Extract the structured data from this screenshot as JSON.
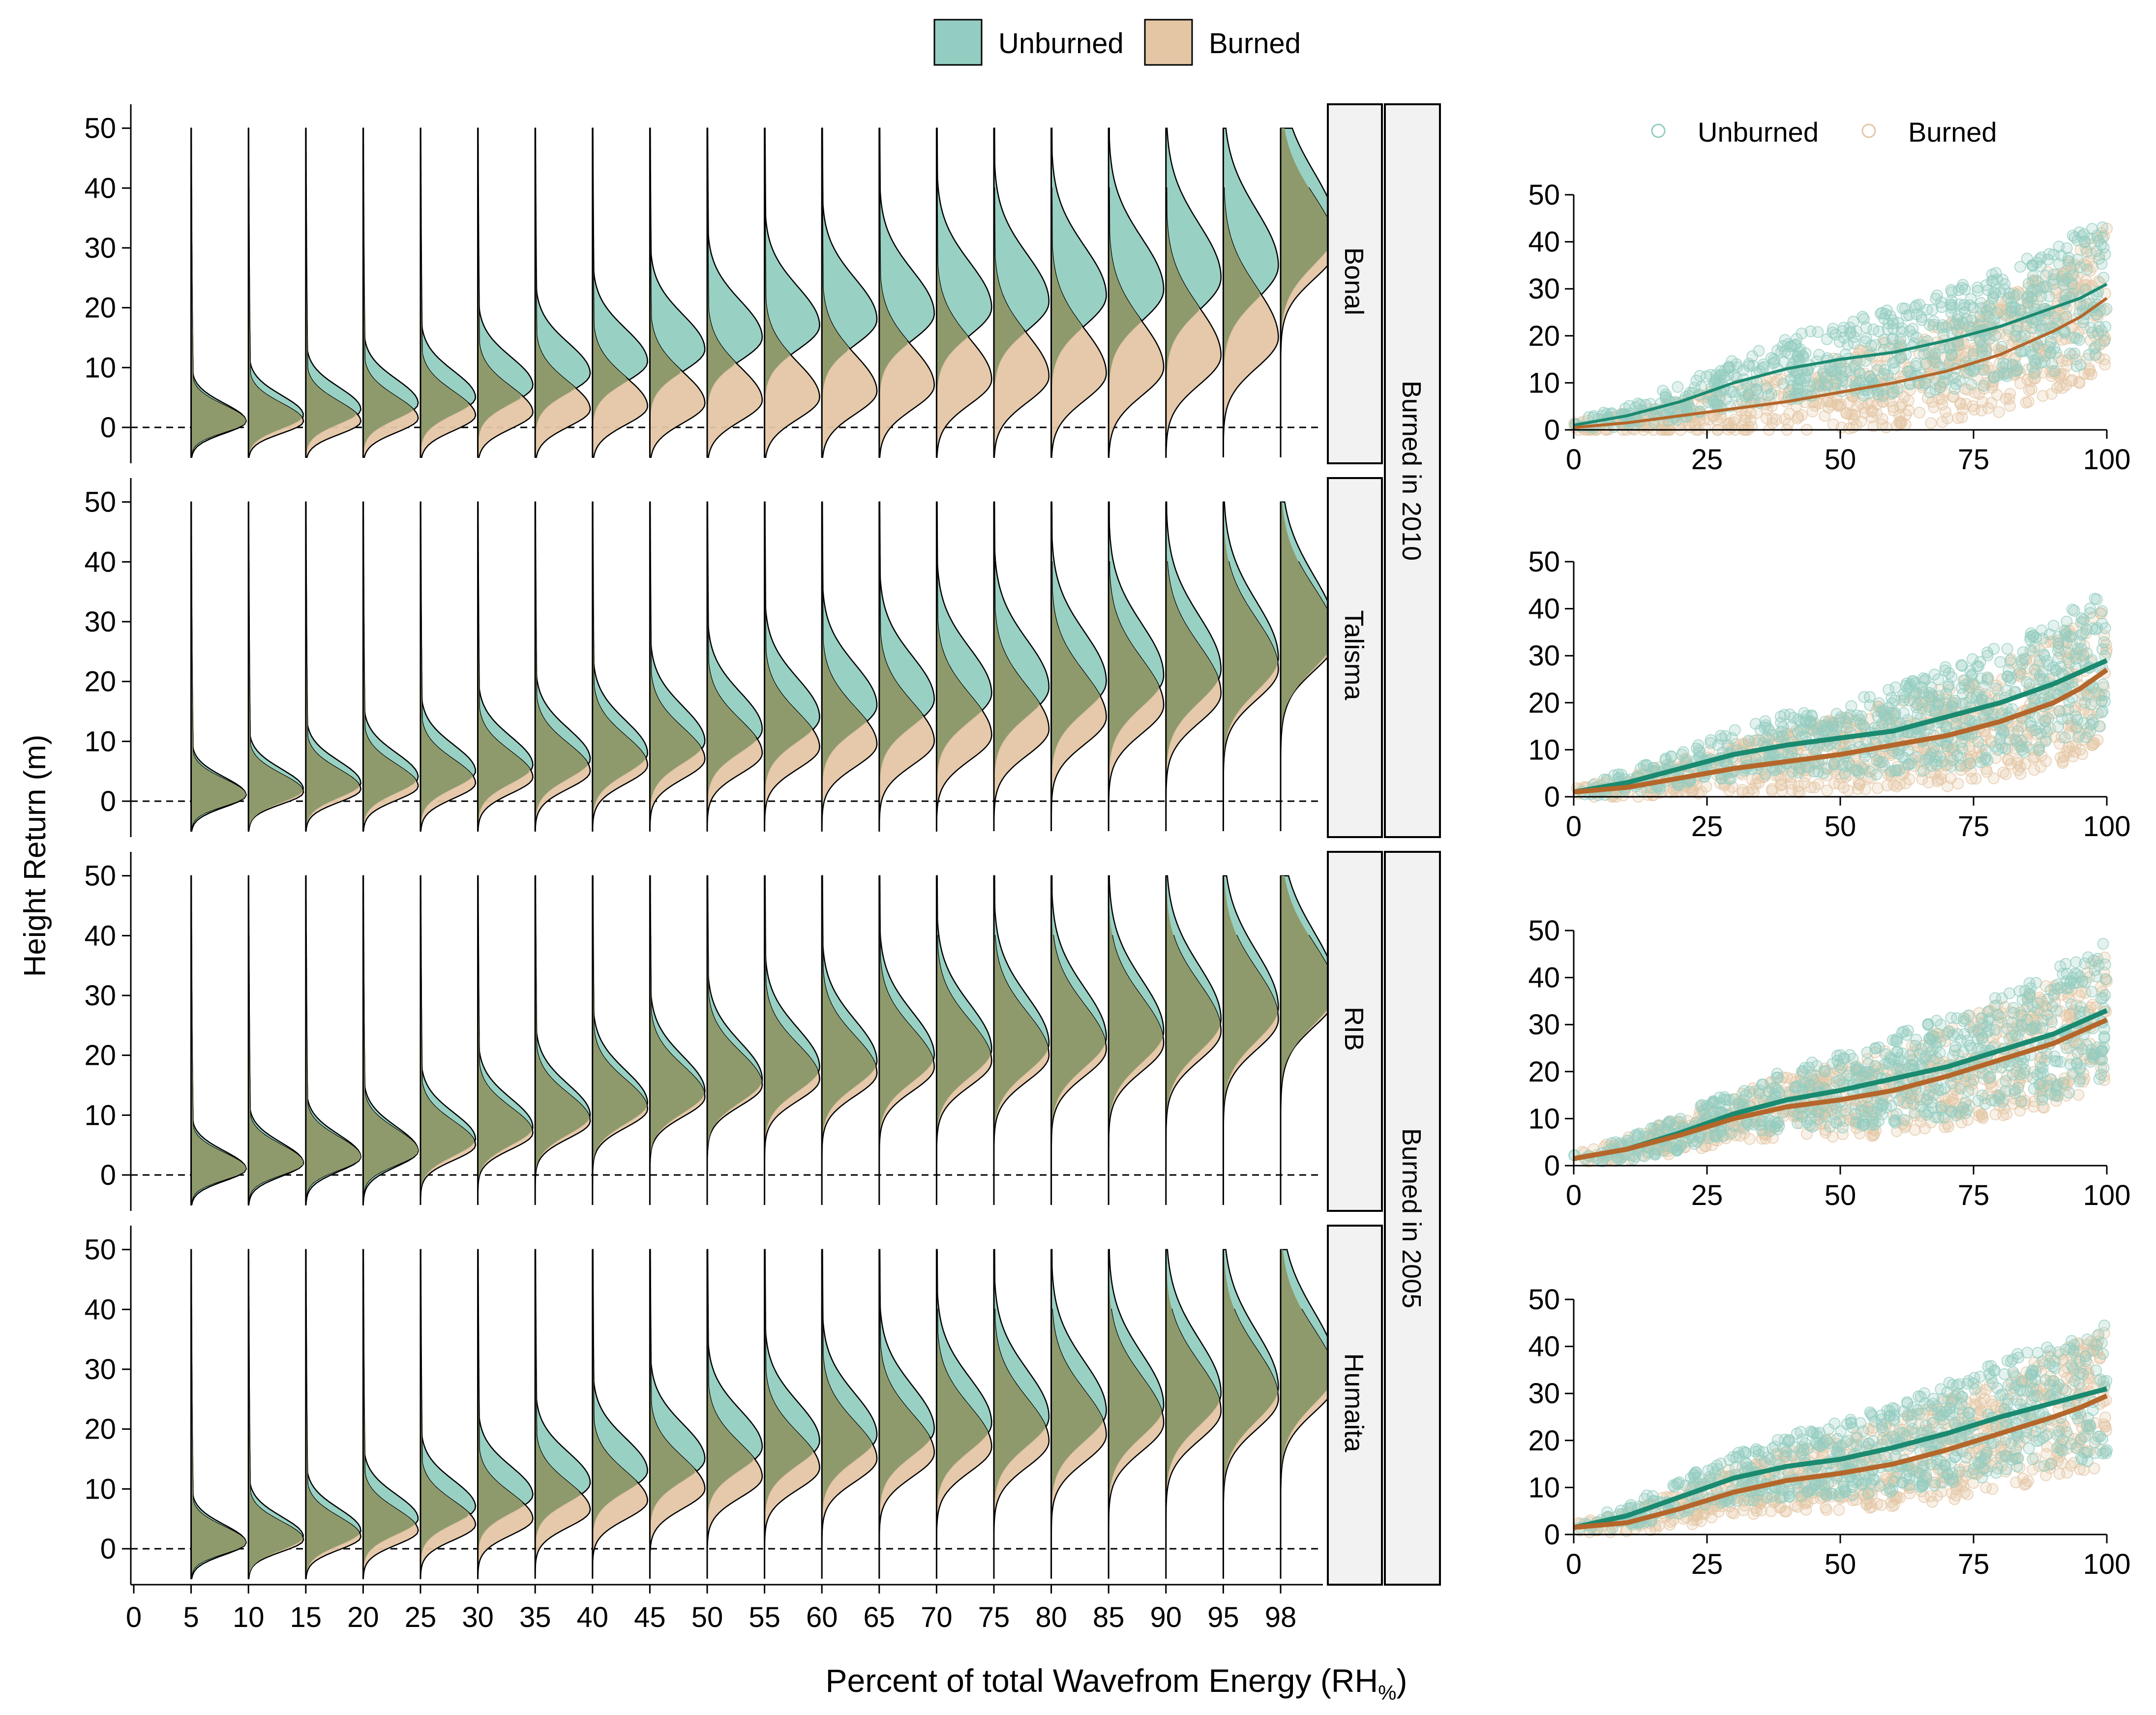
{
  "colors": {
    "unburned": "#93cdc1",
    "burned": "#e4c6a5",
    "overlap": "#8e9a6c",
    "unburned_line": "#1a8a70",
    "burned_line": "#b5662a",
    "strip_bg": "#f2f2f2"
  },
  "chart_data": [
    {
      "type": "area",
      "title": "",
      "legend": {
        "position": "top-center",
        "entries": [
          "Unburned",
          "Burned"
        ]
      },
      "ylabel": "Height Return (m)",
      "xlabel_main": "Percent of total Wavefrom Energy (RH",
      "xlabel_sub": "%",
      "xlabel_end": ")",
      "x_tick_labels": [
        "0",
        "5",
        "10",
        "15",
        "20",
        "25",
        "30",
        "35",
        "40",
        "45",
        "50",
        "55",
        "60",
        "65",
        "70",
        "75",
        "80",
        "85",
        "90",
        "95",
        "98"
      ],
      "rh_levels": [
        5,
        10,
        15,
        20,
        25,
        30,
        35,
        40,
        45,
        50,
        55,
        60,
        65,
        70,
        75,
        80,
        85,
        90,
        95,
        98
      ],
      "y_tick_labels": [
        "0",
        "10",
        "20",
        "30",
        "40",
        "50"
      ],
      "ylim": [
        -6,
        54
      ],
      "group_strips": [
        "Burned in 2010",
        "Burned in 2005"
      ],
      "panels": [
        {
          "site": "Bonal",
          "unburned_mode_m": [
            1,
            2,
            3,
            4,
            5,
            7,
            9,
            11,
            13,
            15,
            17,
            18,
            19,
            20,
            21,
            22,
            23,
            25,
            27,
            33
          ],
          "burned_mode_m": [
            1,
            1,
            1,
            1.5,
            2,
            2.5,
            3,
            3.5,
            4,
            4.5,
            5,
            6,
            7,
            8,
            8.5,
            9,
            10,
            12,
            15,
            30
          ]
        },
        {
          "site": "Talisma",
          "unburned_mode_m": [
            1,
            2,
            3,
            4,
            5,
            6,
            7,
            8,
            10,
            12,
            14,
            16,
            17,
            18,
            19,
            20,
            21,
            22,
            24,
            28
          ],
          "burned_mode_m": [
            1,
            1.5,
            2,
            2.5,
            3,
            4,
            5,
            6,
            7,
            8,
            9,
            9.5,
            10,
            11,
            12,
            14,
            16,
            18,
            22,
            27
          ]
        },
        {
          "site": "RIB",
          "unburned_mode_m": [
            1,
            2,
            3,
            4,
            6,
            8,
            10,
            12,
            14,
            16,
            18,
            19,
            20,
            21,
            22,
            23,
            24,
            26,
            28,
            31
          ],
          "burned_mode_m": [
            1,
            2,
            3,
            4,
            5,
            7,
            9,
            11,
            13,
            15,
            16,
            17,
            18,
            19,
            20,
            21,
            22,
            24,
            26,
            30
          ]
        },
        {
          "site": "Humaita",
          "unburned_mode_m": [
            1,
            2,
            3,
            5,
            7,
            9,
            11,
            13,
            15,
            17,
            18,
            19,
            20,
            21,
            22,
            23,
            24,
            26,
            27,
            30
          ],
          "burned_mode_m": [
            1,
            1.5,
            2,
            3,
            4,
            5,
            6.5,
            8,
            10,
            12,
            13.5,
            15,
            16,
            17,
            18,
            19,
            21,
            23,
            25,
            28
          ]
        }
      ]
    },
    {
      "type": "scatter",
      "legend": {
        "position": "top",
        "entries": [
          "Unburned",
          "Burned"
        ]
      },
      "xlim": [
        0,
        100
      ],
      "ylim": [
        0,
        50
      ],
      "x_tick_labels": [
        "0",
        "25",
        "50",
        "75",
        "100"
      ],
      "y_tick_labels": [
        "0",
        "10",
        "20",
        "30",
        "40",
        "50"
      ],
      "x_ticks": [
        0,
        25,
        50,
        75,
        100
      ],
      "y_ticks": [
        0,
        10,
        20,
        30,
        40,
        50
      ],
      "panels": [
        {
          "site": "Bonal",
          "unburned_mean": {
            "x": [
              0,
              10,
              20,
              30,
              40,
              50,
              60,
              70,
              80,
              90,
              95,
              100
            ],
            "y": [
              1,
              3,
              6,
              10,
              13,
              15,
              16.5,
              19,
              22,
              26,
              28,
              31
            ]
          },
          "burned_mean": {
            "x": [
              0,
              10,
              20,
              30,
              40,
              50,
              60,
              70,
              80,
              90,
              95,
              100
            ],
            "y": [
              0.5,
              1.5,
              3,
              4.5,
              6,
              8,
              10,
              12.5,
              16,
              21,
              24,
              28
            ]
          }
        },
        {
          "site": "Talisma",
          "unburned_mean": {
            "x": [
              0,
              10,
              20,
              30,
              40,
              50,
              60,
              70,
              80,
              90,
              95,
              100
            ],
            "y": [
              1,
              3,
              6,
              9,
              11,
              12.5,
              14,
              17,
              20,
              24,
              26.5,
              29
            ]
          },
          "burned_mean": {
            "x": [
              0,
              10,
              20,
              30,
              40,
              50,
              60,
              70,
              80,
              90,
              95,
              100
            ],
            "y": [
              1,
              2,
              4,
              6,
              7.5,
              9,
              11,
              13,
              16,
              20,
              23,
              27
            ]
          }
        },
        {
          "site": "RIB",
          "unburned_mean": {
            "x": [
              0,
              10,
              20,
              30,
              40,
              50,
              60,
              70,
              80,
              90,
              95,
              100
            ],
            "y": [
              1.5,
              3.5,
              7,
              11,
              14,
              16,
              18.5,
              21,
              24.5,
              28,
              30.5,
              33
            ]
          },
          "burned_mean": {
            "x": [
              0,
              10,
              20,
              30,
              40,
              50,
              60,
              70,
              80,
              90,
              95,
              100
            ],
            "y": [
              1.5,
              3.5,
              6.5,
              10,
              12.5,
              14,
              16,
              19,
              22.5,
              26,
              28.5,
              31
            ]
          }
        },
        {
          "site": "Humaita",
          "unburned_mean": {
            "x": [
              0,
              10,
              20,
              30,
              40,
              50,
              60,
              70,
              80,
              90,
              95,
              100
            ],
            "y": [
              1.5,
              4,
              8,
              12,
              14.5,
              16,
              18.5,
              21.5,
              25,
              28,
              29.5,
              31
            ]
          },
          "burned_mean": {
            "x": [
              0,
              10,
              20,
              30,
              40,
              50,
              60,
              70,
              80,
              90,
              95,
              100
            ],
            "y": [
              1.5,
              2.5,
              5.5,
              9,
              11.5,
              13,
              15,
              18,
              21.5,
              25,
              27,
              29.5
            ]
          }
        }
      ]
    }
  ]
}
